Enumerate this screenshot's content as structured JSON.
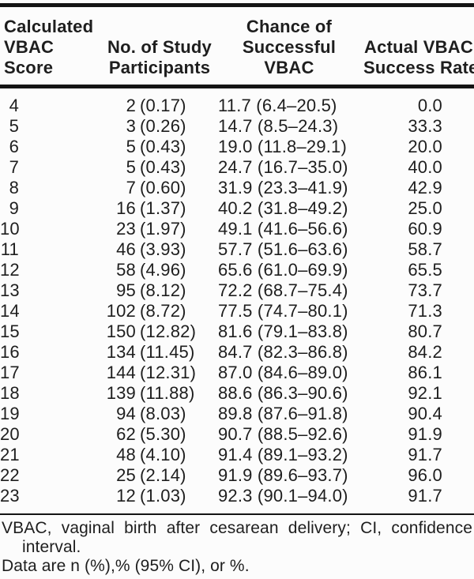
{
  "table": {
    "columns": [
      {
        "id": "calculated-vbac-score",
        "lines": [
          "Calculated",
          "VBAC",
          "Score"
        ]
      },
      {
        "id": "no-of-study-participants",
        "lines": [
          "No. of Study",
          "Participants"
        ]
      },
      {
        "id": "chance-of-successful-vbac",
        "lines": [
          "Chance of",
          "Successful",
          "VBAC"
        ]
      },
      {
        "id": "actual-vbac-success-rate",
        "lines": [
          "Actual VBAC",
          "Success Rate"
        ]
      }
    ],
    "rows": [
      {
        "score": "4",
        "n": "2",
        "pct": "(0.17)",
        "chance": "11.7 (6.4–20.5)",
        "actual": "0.0"
      },
      {
        "score": "5",
        "n": "3",
        "pct": "(0.26)",
        "chance": "14.7 (8.5–24.3)",
        "actual": "33.3"
      },
      {
        "score": "6",
        "n": "5",
        "pct": "(0.43)",
        "chance": "19.0 (11.8–29.1)",
        "actual": "20.0"
      },
      {
        "score": "7",
        "n": "5",
        "pct": "(0.43)",
        "chance": "24.7 (16.7–35.0)",
        "actual": "40.0"
      },
      {
        "score": "8",
        "n": "7",
        "pct": "(0.60)",
        "chance": "31.9 (23.3–41.9)",
        "actual": "42.9"
      },
      {
        "score": "9",
        "n": "16",
        "pct": "(1.37)",
        "chance": "40.2 (31.8–49.2)",
        "actual": "25.0"
      },
      {
        "score": "10",
        "n": "23",
        "pct": "(1.97)",
        "chance": "49.1 (41.6–56.6)",
        "actual": "60.9"
      },
      {
        "score": "11",
        "n": "46",
        "pct": "(3.93)",
        "chance": "57.7 (51.6–63.6)",
        "actual": "58.7"
      },
      {
        "score": "12",
        "n": "58",
        "pct": "(4.96)",
        "chance": "65.6 (61.0–69.9)",
        "actual": "65.5"
      },
      {
        "score": "13",
        "n": "95",
        "pct": "(8.12)",
        "chance": "72.2 (68.7–75.4)",
        "actual": "73.7"
      },
      {
        "score": "14",
        "n": "102",
        "pct": "(8.72)",
        "chance": "77.5 (74.7–80.1)",
        "actual": "71.3"
      },
      {
        "score": "15",
        "n": "150",
        "pct": "(12.82)",
        "chance": "81.6 (79.1–83.8)",
        "actual": "80.7"
      },
      {
        "score": "16",
        "n": "134",
        "pct": "(11.45)",
        "chance": "84.7 (82.3–86.8)",
        "actual": "84.2"
      },
      {
        "score": "17",
        "n": "144",
        "pct": "(12.31)",
        "chance": "87.0 (84.6–89.0)",
        "actual": "86.1"
      },
      {
        "score": "18",
        "n": "139",
        "pct": "(11.88)",
        "chance": "88.6 (86.3–90.6)",
        "actual": "92.1"
      },
      {
        "score": "19",
        "n": "94",
        "pct": "(8.03)",
        "chance": "89.8 (87.6–91.8)",
        "actual": "90.4"
      },
      {
        "score": "20",
        "n": "62",
        "pct": "(5.30)",
        "chance": "90.7 (88.5–92.6)",
        "actual": "91.9"
      },
      {
        "score": "21",
        "n": "48",
        "pct": "(4.10)",
        "chance": "91.4 (89.1–93.2)",
        "actual": "91.7"
      },
      {
        "score": "22",
        "n": "25",
        "pct": "(2.14)",
        "chance": "91.9 (89.6–93.7)",
        "actual": "96.0"
      },
      {
        "score": "23",
        "n": "12",
        "pct": "(1.03)",
        "chance": "92.3 (90.1–94.0)",
        "actual": "91.7"
      }
    ],
    "footnotes": {
      "line1": "VBAC, vaginal birth after cesarean delivery; CI, confidence",
      "line2": "interval.",
      "line3": "Data are n (%),% (95% CI), or %."
    }
  },
  "colors": {
    "background": "#fcfcfc",
    "text": "#1e1e1e",
    "rule": "#141414"
  }
}
